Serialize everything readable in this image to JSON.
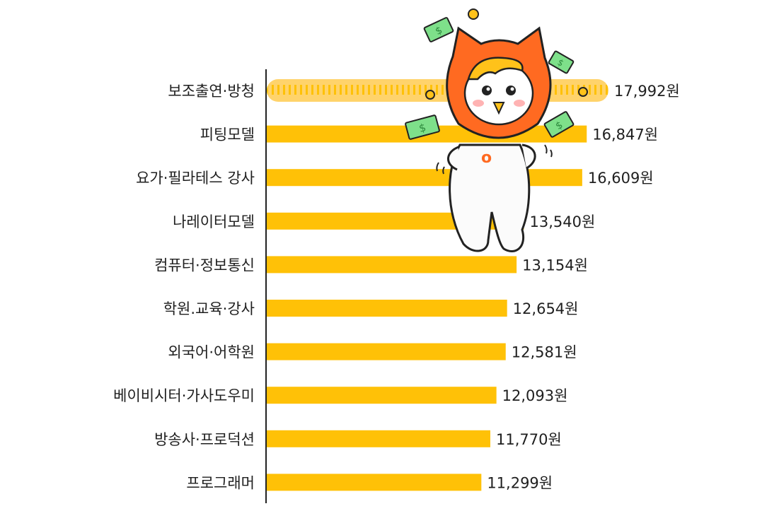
{
  "chart_data": {
    "type": "bar",
    "orientation": "horizontal",
    "categories": [
      "보조출연·방청",
      "피팅모델",
      "요가·필라테스 강사",
      "나레이터모델",
      "컴퓨터·정보통신",
      "학원.교육·강사",
      "외국어·어학원",
      "베이비시터·가사도우미",
      "방송사·프로덕션",
      "프로그래머"
    ],
    "values": [
      17992,
      16847,
      16609,
      13540,
      13154,
      12654,
      12581,
      12093,
      11770,
      11299
    ],
    "value_labels": [
      "17,992원",
      "16,847원",
      "16,609원",
      "13,540원",
      "13,154원",
      "12,654원",
      "12,581원",
      "12,093원",
      "11,770원",
      "11,299원"
    ],
    "highlight_index": 0,
    "xlabel": "",
    "ylabel": "",
    "grid": false,
    "legend": "none"
  },
  "colors": {
    "bar": "#FFC107",
    "bar_highlight": "#FFD36B",
    "bar_highlight_stripe": "#FFB300",
    "axis": "#222222",
    "mascot_orange": "#FF6A21",
    "mascot_hair": "#FFC21A",
    "money": "#7EE08A"
  },
  "illustration": {
    "name": "mascot-character",
    "decorations": [
      "money-bill-icon",
      "coin-icon",
      "sparkle-icon"
    ]
  }
}
